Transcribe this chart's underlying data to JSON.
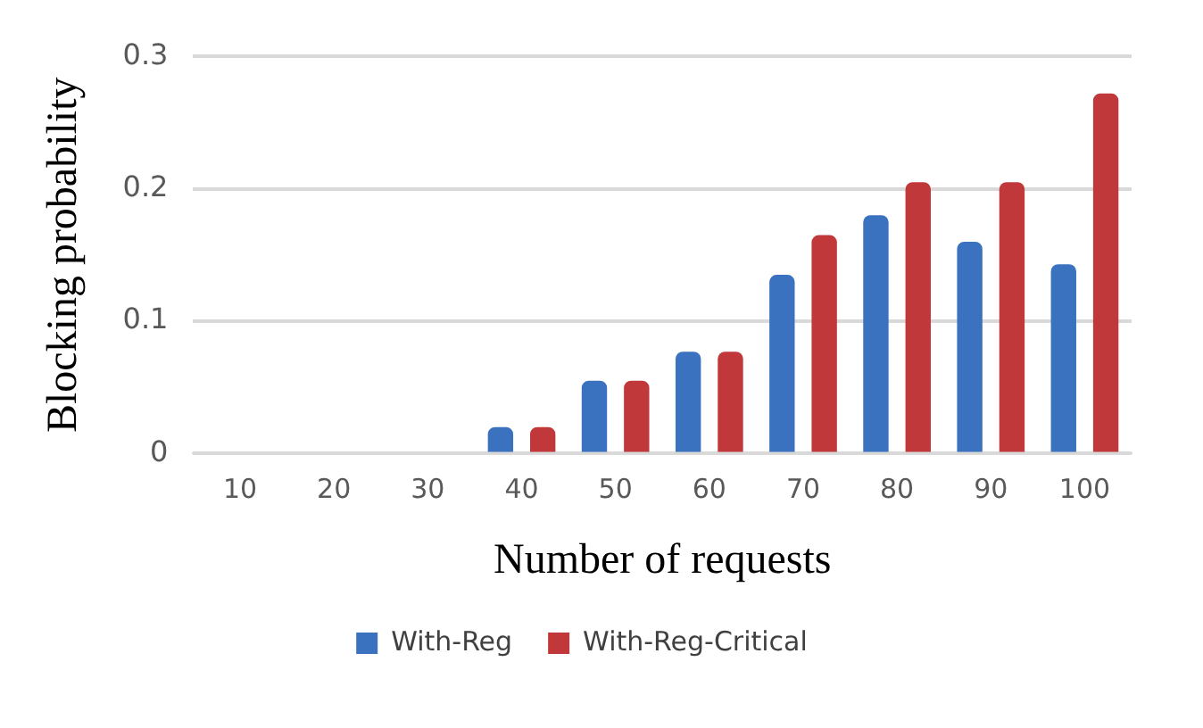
{
  "chart_data": {
    "type": "bar",
    "xlabel": "Number of requests",
    "ylabel": "Blocking probability",
    "categories": [
      "10",
      "20",
      "30",
      "40",
      "50",
      "60",
      "70",
      "80",
      "90",
      "100"
    ],
    "series": [
      {
        "name": "With-Reg",
        "color": "#3a72c0",
        "values": [
          0,
          0,
          0,
          0.02,
          0.055,
          0.077,
          0.135,
          0.18,
          0.16,
          0.143
        ]
      },
      {
        "name": "With-Reg-Critical",
        "color": "#c0383a",
        "values": [
          0,
          0,
          0,
          0.02,
          0.055,
          0.077,
          0.165,
          0.205,
          0.205,
          0.272
        ]
      }
    ],
    "ylim": [
      0,
      0.3
    ],
    "yticks": [
      0,
      0.1,
      0.2,
      0.3
    ],
    "grid": "y",
    "legend": "bottom"
  }
}
